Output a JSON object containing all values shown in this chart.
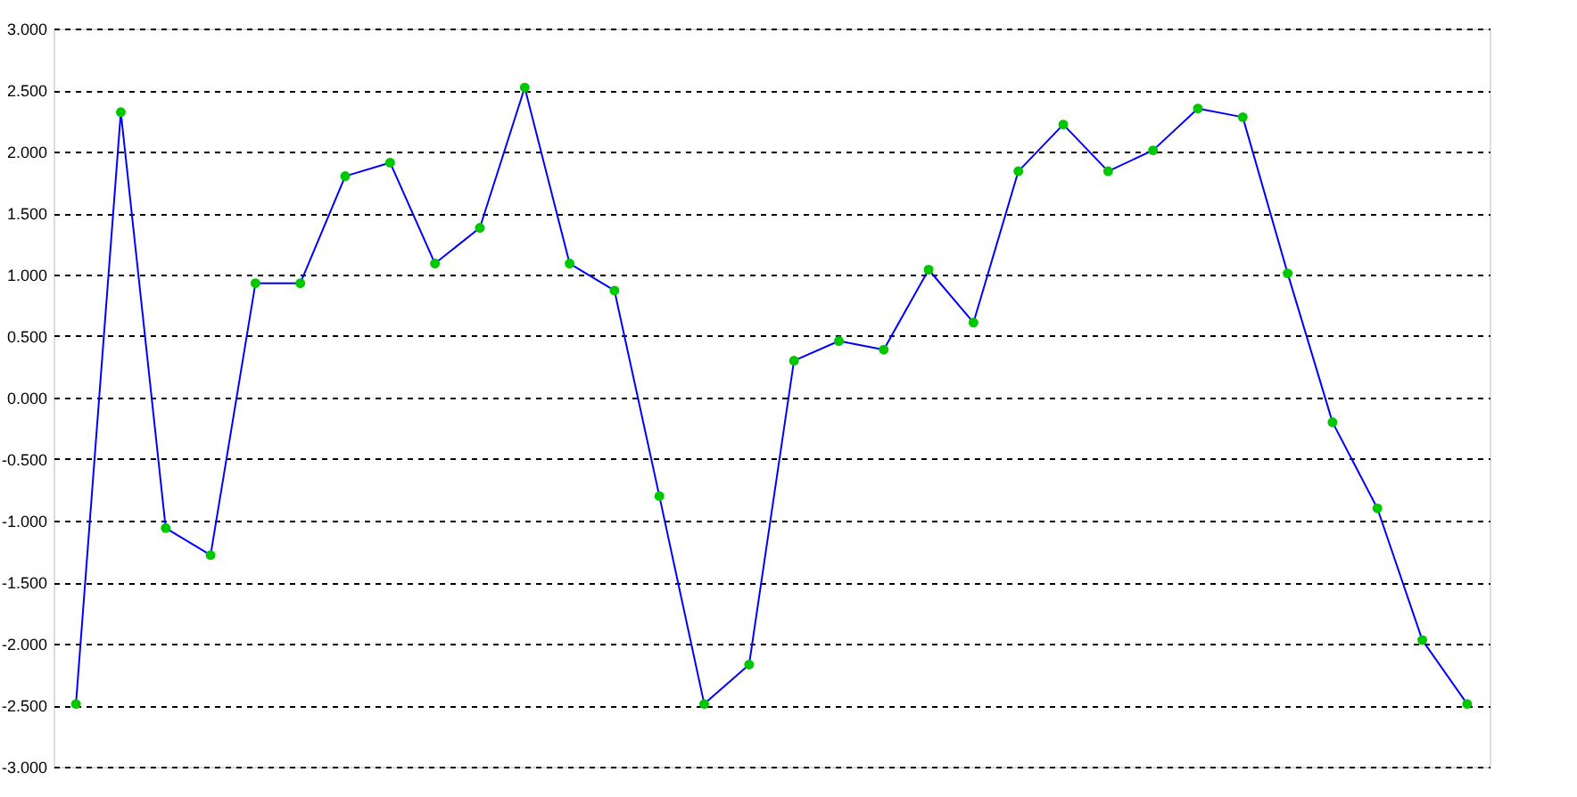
{
  "chart_data": {
    "type": "line",
    "categories": [
      null,
      null,
      null,
      null,
      null,
      null,
      null,
      null,
      null,
      null,
      null,
      null,
      null,
      null,
      null,
      null,
      null,
      null,
      null,
      null,
      null,
      null,
      null,
      null,
      null,
      null,
      null,
      null,
      null,
      null,
      null,
      null
    ],
    "series": [
      {
        "color": "#0000ff",
        "colors": [
          "#00c800",
          "#00c800",
          "#00c800",
          "#00c800",
          "#00c800",
          "#00c800",
          "#00c800",
          "#00c800",
          "#00c800",
          "#00c800",
          "#00c800",
          "#00c800",
          "#00c800",
          "#00c800",
          "#00c800",
          "#00c800",
          "#00c800",
          "#00c800",
          "#00c800",
          "#00c800",
          "#00c800",
          "#00c800",
          "#00c800",
          "#00c800",
          "#00c800",
          "#00c800",
          "#00c800",
          "#00c800",
          "#00c800",
          "#00c800",
          "#00c800",
          "#00c800"
        ],
        "values": [
          -2.49,
          2.32,
          -1.06,
          -1.28,
          0.93,
          0.93,
          1.8,
          1.91,
          1.09,
          1.38,
          2.52,
          1.09,
          0.87,
          -0.8,
          -2.49,
          -2.17,
          0.3,
          0.46,
          0.39,
          1.04,
          0.61,
          1.84,
          2.22,
          1.84,
          2.01,
          2.35,
          2.28,
          1.01,
          -0.2,
          -0.9,
          -1.97,
          -2.49
        ]
      }
    ],
    "ylim": [
      -3,
      3
    ],
    "yticks": [
      {
        "value": 3,
        "label": "3.000"
      },
      {
        "value": 2.5,
        "label": "2.500"
      },
      {
        "value": 2,
        "label": "2.000"
      },
      {
        "value": 1.5,
        "label": "1.500"
      },
      {
        "value": 1,
        "label": "1.000"
      },
      {
        "value": 0.5,
        "label": "0.500"
      },
      {
        "value": 0,
        "label": "0.000"
      },
      {
        "value": -0.5,
        "label": "-0.500"
      },
      {
        "value": -1,
        "label": "-1.000"
      },
      {
        "value": -1.5,
        "label": "-1.500"
      },
      {
        "value": -2,
        "label": "-2.000"
      },
      {
        "value": -2.5,
        "label": "-2.500"
      },
      {
        "value": -3,
        "label": "-3.000"
      }
    ],
    "grid": "y",
    "marker": "circle",
    "line_style": "solid",
    "tick_labels": "y"
  }
}
